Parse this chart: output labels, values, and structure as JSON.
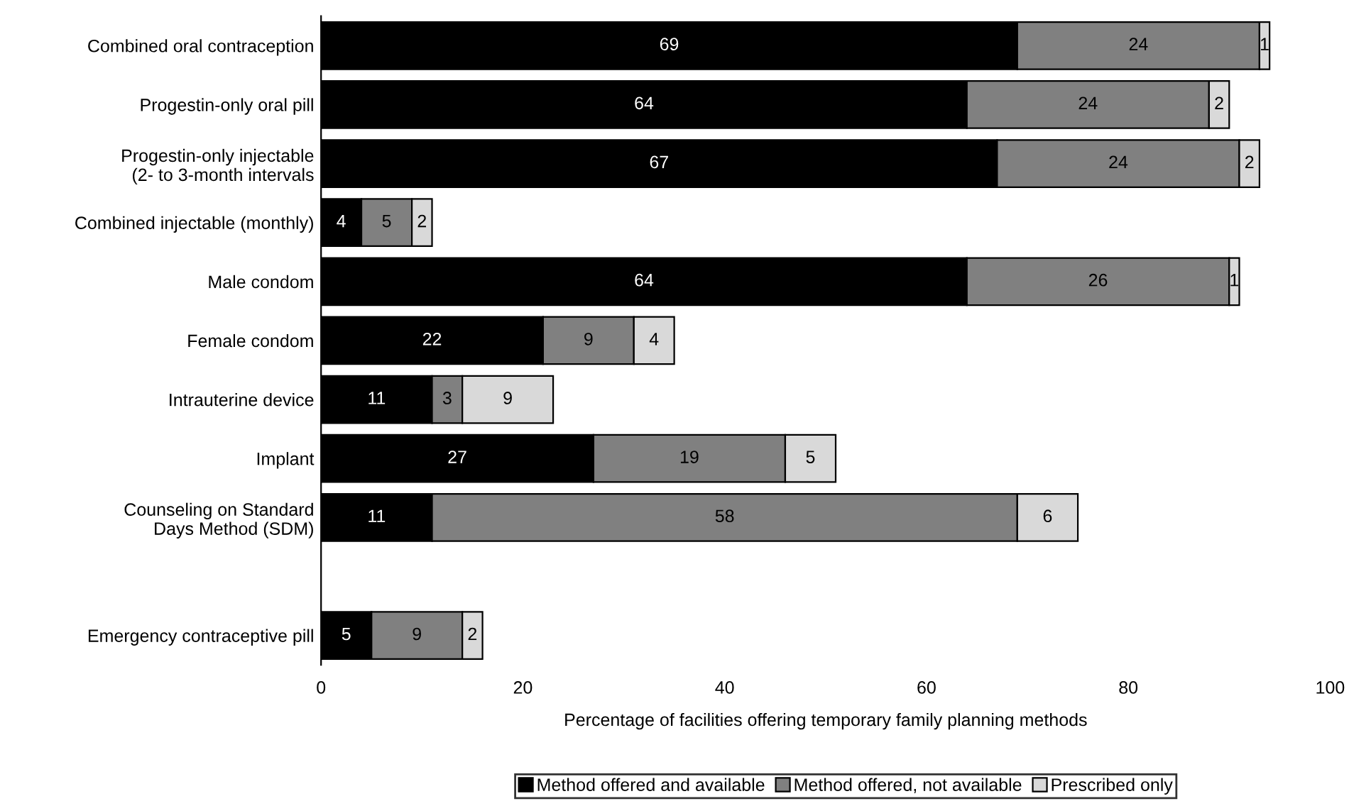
{
  "chart_data": {
    "type": "bar",
    "orientation": "horizontal",
    "stacked": true,
    "xlabel": "Percentage of facilities offering temporary family planning methods",
    "categories": [
      "Combined oral contraception",
      "Progestin-only oral pill",
      "Progestin-only injectable\n(2- to 3-month intervals",
      "Combined injectable (monthly)",
      "Male condom",
      "Female condom",
      "Intrauterine device",
      "Implant",
      "Counseling on Standard\nDays Method (SDM)",
      null,
      "Emergency contraceptive pill"
    ],
    "series": [
      {
        "name": "Method offered and available",
        "color": "#000000",
        "values": [
          69,
          64,
          67,
          4,
          64,
          22,
          11,
          27,
          11,
          null,
          5
        ]
      },
      {
        "name": "Method offered, not available",
        "color": "#808080",
        "values": [
          24,
          24,
          24,
          5,
          26,
          9,
          3,
          19,
          58,
          null,
          9
        ]
      },
      {
        "name": "Prescribed only",
        "color": "#d9d9d9",
        "values": [
          1,
          2,
          2,
          2,
          1,
          4,
          9,
          5,
          6,
          null,
          2
        ]
      }
    ],
    "xlim": [
      0,
      100
    ],
    "xticks": [
      0,
      20,
      40,
      60,
      80,
      100
    ],
    "data_labels": true,
    "grid": false,
    "legend": "bottom"
  }
}
